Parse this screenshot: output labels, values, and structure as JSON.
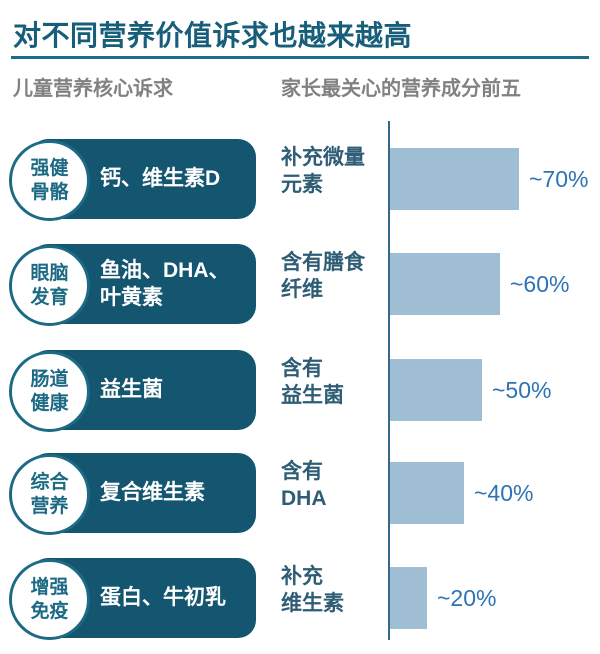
{
  "title": "对不同营养价值诉求也越来越高",
  "columns": {
    "left_header": "儿童营养核心诉求",
    "right_header": "家长最关心的营养成分前五"
  },
  "colors": {
    "title_text": "#175e7a",
    "rule": "#1c6c90",
    "header_gray": "#818181",
    "pill_background": "#14566f",
    "badge_accent": "#1d6a85",
    "bar_fill": "#9fbdd3",
    "axis_line": "#33688a",
    "bar_label_text": "#2e5d75",
    "percent_text": "#2d73b5"
  },
  "rows": [
    {
      "badge": "强健\n骨骼",
      "pill": "钙、维生素D",
      "bar_label": "补充微量\n元素",
      "pct_label": "~70%",
      "value": 70
    },
    {
      "badge": "眼脑\n发育",
      "pill": "鱼油、DHA、\n叶黄素",
      "bar_label": "含有膳食\n纤维",
      "pct_label": "~60%",
      "value": 60
    },
    {
      "badge": "肠道\n健康",
      "pill": "益生菌",
      "bar_label": "含有\n益生菌",
      "pct_label": "~50%",
      "value": 50
    },
    {
      "badge": "综合\n营养",
      "pill": "复合维生素",
      "bar_label": "含有\nDHA",
      "pct_label": "~40%",
      "value": 40
    },
    {
      "badge": "增强\n免疫",
      "pill": "蛋白、牛初乳",
      "bar_label": "补充\n维生素",
      "pct_label": "~20%",
      "value": 20
    }
  ],
  "chart_data": {
    "type": "bar",
    "orientation": "horizontal",
    "title": "家长最关心的营养成分前五",
    "categories": [
      "补充微量元素",
      "含有膳食纤维",
      "含有益生菌",
      "含有DHA",
      "补充维生素"
    ],
    "values": [
      70,
      60,
      50,
      40,
      20
    ],
    "value_labels": [
      "~70%",
      "~60%",
      "~50%",
      "~40%",
      "~20%"
    ],
    "xlim": [
      0,
      100
    ],
    "grid": false,
    "legend": false,
    "bar_color": "#9fbdd3"
  }
}
